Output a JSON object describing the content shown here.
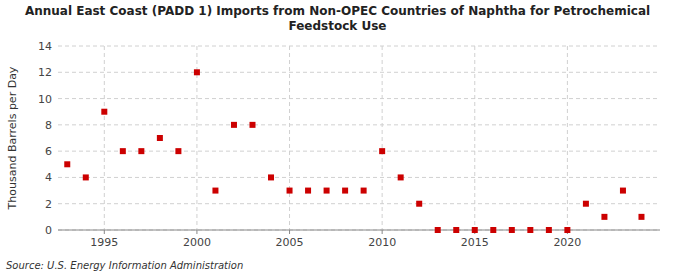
{
  "chart_data": {
    "type": "scatter",
    "title": "Annual East Coast (PADD 1) Imports from Non-OPEC Countries of Naphtha for Petrochemical\nFeedstock Use",
    "y_label": "Thousand Barrels per Day",
    "source": "Source: U.S. Energy Information Administration",
    "x": [
      1993,
      1994,
      1995,
      1996,
      1997,
      1998,
      1999,
      2000,
      2001,
      2002,
      2003,
      2004,
      2005,
      2006,
      2007,
      2008,
      2009,
      2010,
      2011,
      2012,
      2013,
      2014,
      2015,
      2016,
      2017,
      2018,
      2019,
      2020,
      2021,
      2022,
      2023,
      2024
    ],
    "values": [
      5,
      4,
      9,
      6,
      6,
      7,
      6,
      12,
      3,
      8,
      8,
      4,
      3,
      3,
      3,
      3,
      3,
      6,
      4,
      2,
      0,
      0,
      0,
      0,
      0,
      0,
      0,
      0,
      2,
      1,
      3,
      1
    ],
    "color": "#cc0000",
    "marker": "square",
    "xlim": [
      1992.5,
      2025
    ],
    "ylim": [
      0,
      14
    ],
    "xticks": [
      1995,
      2000,
      2005,
      2010,
      2015,
      2020
    ],
    "yticks": [
      0,
      2,
      4,
      6,
      8,
      10,
      12,
      14
    ],
    "grid": true
  }
}
